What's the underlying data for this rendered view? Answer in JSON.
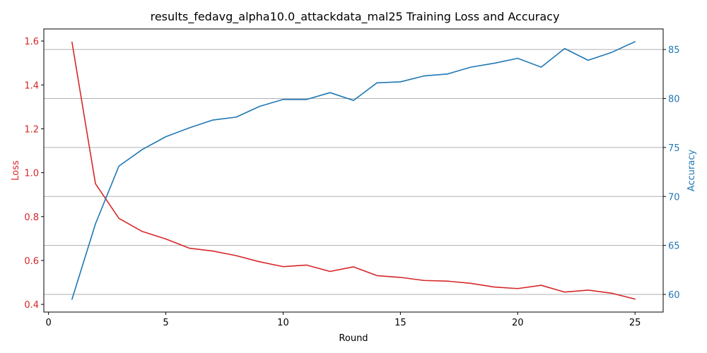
{
  "chart_data": {
    "type": "line",
    "title": "results_fedavg_alpha10.0_attackdata_mal25 Training Loss and Accuracy",
    "xlabel": "Round",
    "xlim": [
      -0.2,
      26.2
    ],
    "xticks": [
      0,
      5,
      10,
      15,
      20,
      25
    ],
    "x": [
      1,
      2,
      3,
      4,
      5,
      6,
      7,
      8,
      9,
      10,
      11,
      12,
      13,
      14,
      15,
      16,
      17,
      18,
      19,
      20,
      21,
      22,
      23,
      24,
      25
    ],
    "grid": "horizontal, right axis",
    "series": [
      {
        "name": "Loss",
        "axis": "left",
        "color": "#d62728",
        "values": [
          1.595,
          0.95,
          0.792,
          0.732,
          0.698,
          0.656,
          0.643,
          0.622,
          0.594,
          0.572,
          0.579,
          0.55,
          0.571,
          0.531,
          0.523,
          0.509,
          0.506,
          0.496,
          0.479,
          0.472,
          0.487,
          0.456,
          0.465,
          0.451,
          0.424
        ]
      },
      {
        "name": "Accuracy",
        "axis": "right",
        "color": "#1f77b4",
        "values": [
          59.5,
          67.2,
          73.1,
          74.8,
          76.1,
          77.0,
          77.8,
          78.1,
          79.2,
          79.9,
          79.9,
          80.6,
          79.8,
          81.6,
          81.7,
          82.3,
          82.5,
          83.2,
          83.6,
          84.1,
          83.2,
          85.1,
          83.9,
          84.7,
          85.8
        ]
      }
    ],
    "y_left": {
      "label": "Loss",
      "color": "#d62728",
      "lim": [
        0.365,
        1.655
      ],
      "ticks": [
        0.4,
        0.6,
        0.8,
        1.0,
        1.2,
        1.4,
        1.6
      ],
      "tick_labels": [
        "0.4",
        "0.6",
        "0.8",
        "1.0",
        "1.2",
        "1.4",
        "1.6"
      ]
    },
    "y_right": {
      "label": "Accuracy",
      "color": "#1f77b4",
      "lim": [
        58.2,
        87.1
      ],
      "ticks": [
        60,
        65,
        70,
        75,
        80,
        85
      ],
      "tick_labels": [
        "60",
        "65",
        "70",
        "75",
        "80",
        "85"
      ]
    }
  }
}
